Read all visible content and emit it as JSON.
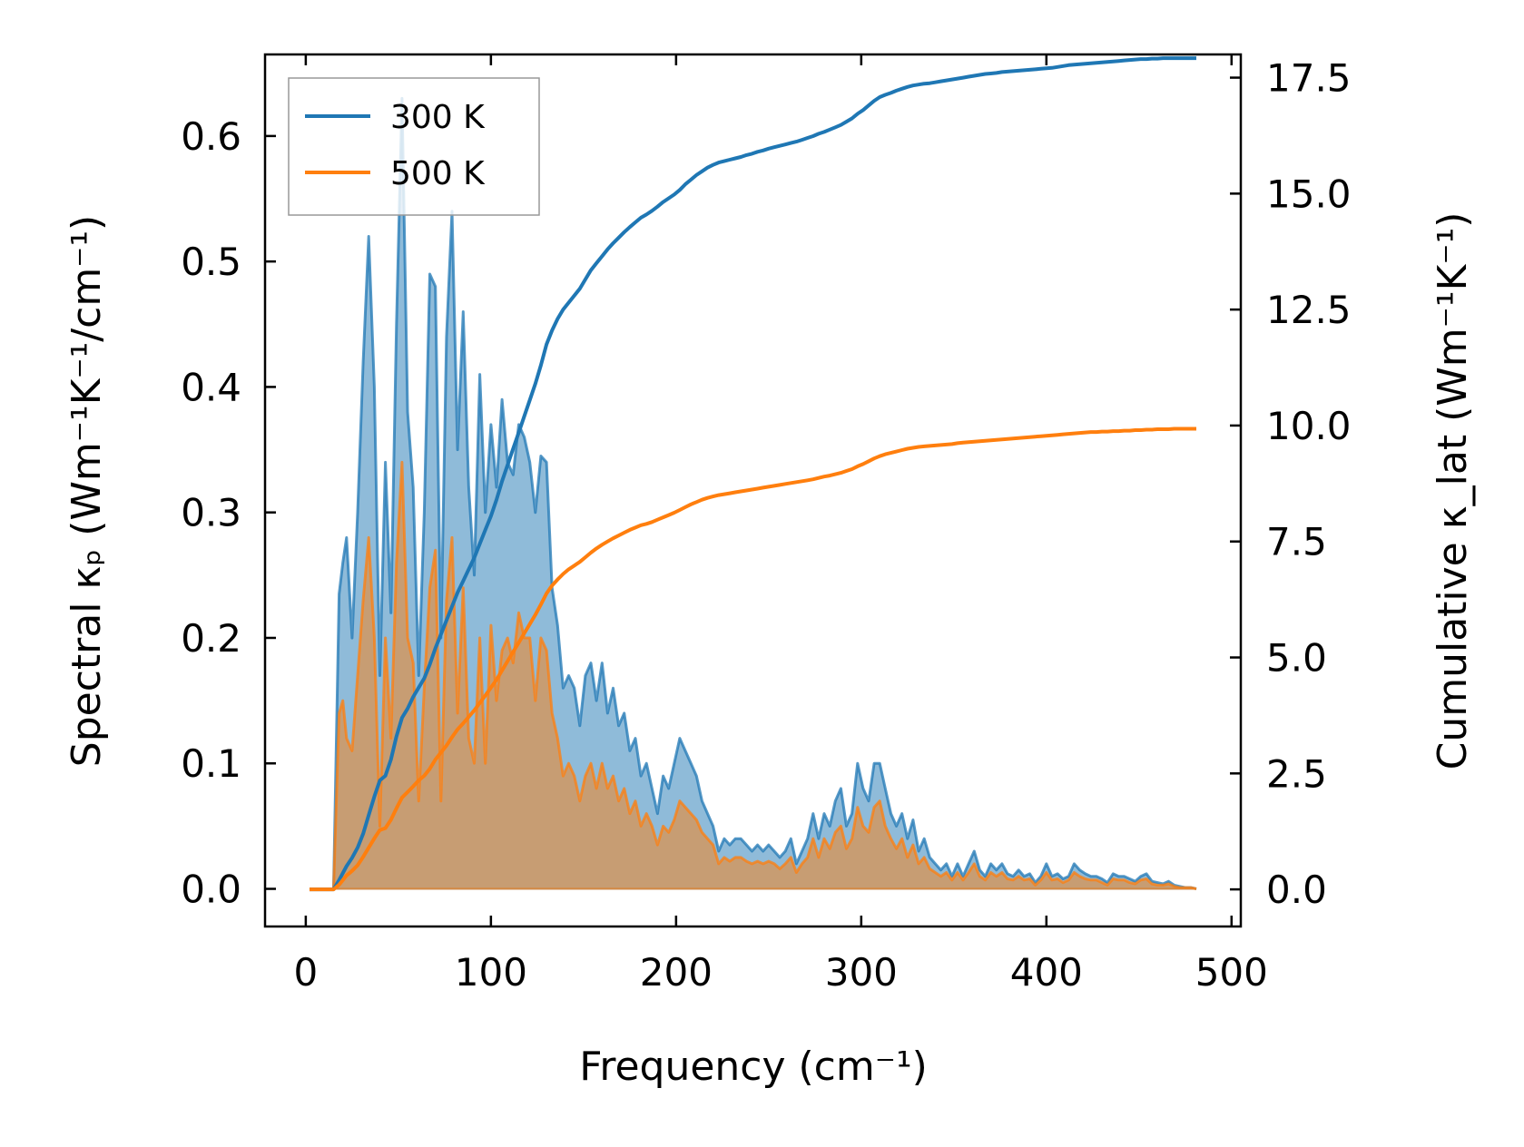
{
  "chart_data": {
    "type": "area",
    "xlabel": "Frequency (cm⁻¹)",
    "ylabel_left": "Spectral κₚ (Wm⁻¹K⁻¹/cm⁻¹)",
    "ylabel_right": "Cumulative κ_lat (Wm⁻¹K⁻¹)",
    "xlim": [
      -22,
      505
    ],
    "ylim_left": [
      -0.03,
      0.665
    ],
    "ylim_right": [
      -0.8,
      18.0
    ],
    "xticks": [
      0,
      100,
      200,
      300,
      400,
      500
    ],
    "xtick_labels": [
      "0",
      "100",
      "200",
      "300",
      "400",
      "500"
    ],
    "yticks_left": [
      0.0,
      0.1,
      0.2,
      0.3,
      0.4,
      0.5,
      0.6
    ],
    "ytick_labels_left": [
      "0.0",
      "0.1",
      "0.2",
      "0.3",
      "0.4",
      "0.5",
      "0.6"
    ],
    "yticks_right": [
      0.0,
      2.5,
      5.0,
      7.5,
      10.0,
      12.5,
      15.0,
      17.5
    ],
    "ytick_labels_right": [
      "0.0",
      "2.5",
      "5.0",
      "7.5",
      "10.0",
      "12.5",
      "15.0",
      "17.5"
    ],
    "legend": {
      "position": "top-left",
      "entries": [
        "300 K",
        "500 K"
      ]
    },
    "colors": {
      "s300": "#1f77b4",
      "s500": "#ff7f0e"
    },
    "x": [
      2,
      15,
      18,
      20,
      22,
      25,
      28,
      31,
      34,
      37,
      40,
      43,
      46,
      49,
      52,
      55,
      58,
      61,
      64,
      67,
      70,
      73,
      76,
      79,
      82,
      85,
      88,
      91,
      94,
      97,
      100,
      103,
      106,
      109,
      112,
      115,
      118,
      121,
      124,
      127,
      130,
      133,
      136,
      139,
      142,
      145,
      148,
      151,
      154,
      157,
      160,
      163,
      166,
      169,
      172,
      175,
      178,
      181,
      184,
      187,
      190,
      193,
      196,
      199,
      202,
      205,
      208,
      211,
      214,
      217,
      220,
      223,
      226,
      229,
      232,
      235,
      238,
      241,
      244,
      247,
      250,
      253,
      256,
      259,
      262,
      265,
      268,
      271,
      274,
      277,
      280,
      283,
      286,
      289,
      292,
      295,
      298,
      301,
      304,
      307,
      310,
      313,
      316,
      319,
      322,
      325,
      328,
      331,
      334,
      337,
      340,
      343,
      346,
      349,
      352,
      355,
      358,
      361,
      364,
      367,
      370,
      373,
      376,
      379,
      382,
      385,
      388,
      391,
      394,
      397,
      400,
      403,
      406,
      409,
      412,
      415,
      418,
      421,
      424,
      427,
      430,
      433,
      436,
      439,
      442,
      445,
      448,
      451,
      454,
      457,
      460,
      463,
      466,
      469,
      472,
      475,
      478,
      481
    ],
    "series": [
      {
        "name": "300 K",
        "spectral": [
          0,
          0,
          0.235,
          0.26,
          0.28,
          0.2,
          0.3,
          0.42,
          0.52,
          0.4,
          0.17,
          0.34,
          0.22,
          0.45,
          0.63,
          0.38,
          0.32,
          0.17,
          0.3,
          0.49,
          0.48,
          0.2,
          0.44,
          0.54,
          0.35,
          0.46,
          0.32,
          0.25,
          0.41,
          0.3,
          0.37,
          0.32,
          0.39,
          0.34,
          0.33,
          0.37,
          0.36,
          0.34,
          0.3,
          0.345,
          0.34,
          0.24,
          0.21,
          0.16,
          0.17,
          0.16,
          0.13,
          0.17,
          0.18,
          0.15,
          0.18,
          0.14,
          0.16,
          0.13,
          0.14,
          0.11,
          0.12,
          0.09,
          0.1,
          0.08,
          0.06,
          0.09,
          0.08,
          0.1,
          0.12,
          0.11,
          0.1,
          0.09,
          0.07,
          0.06,
          0.05,
          0.03,
          0.04,
          0.035,
          0.04,
          0.04,
          0.035,
          0.03,
          0.035,
          0.03,
          0.035,
          0.03,
          0.025,
          0.03,
          0.04,
          0.02,
          0.03,
          0.04,
          0.06,
          0.04,
          0.06,
          0.05,
          0.07,
          0.08,
          0.05,
          0.06,
          0.1,
          0.08,
          0.07,
          0.1,
          0.1,
          0.08,
          0.06,
          0.05,
          0.06,
          0.04,
          0.055,
          0.03,
          0.04,
          0.025,
          0.02,
          0.015,
          0.02,
          0.01,
          0.02,
          0.01,
          0.02,
          0.03,
          0.015,
          0.01,
          0.02,
          0.015,
          0.02,
          0.012,
          0.01,
          0.015,
          0.01,
          0.012,
          0.005,
          0.01,
          0.02,
          0.01,
          0.012,
          0.008,
          0.01,
          0.02,
          0.015,
          0.012,
          0.01,
          0.01,
          0.008,
          0.005,
          0.012,
          0.01,
          0.01,
          0.008,
          0.006,
          0.01,
          0.012,
          0.006,
          0.005,
          0.004,
          0.006,
          0.003,
          0.002,
          0.001,
          0.001,
          0
        ],
        "cumulative": [
          0,
          0,
          0.2,
          0.35,
          0.5,
          0.68,
          0.9,
          1.2,
          1.6,
          2.0,
          2.35,
          2.45,
          2.8,
          3.3,
          3.7,
          3.9,
          4.15,
          4.35,
          4.55,
          4.85,
          5.2,
          5.5,
          5.8,
          6.1,
          6.4,
          6.65,
          6.9,
          7.15,
          7.45,
          7.75,
          8.05,
          8.4,
          8.8,
          9.15,
          9.5,
          9.85,
          10.2,
          10.55,
          10.9,
          11.3,
          11.75,
          12.05,
          12.3,
          12.5,
          12.65,
          12.8,
          12.95,
          13.15,
          13.35,
          13.5,
          13.65,
          13.8,
          13.93,
          14.05,
          14.17,
          14.28,
          14.38,
          14.48,
          14.55,
          14.63,
          14.72,
          14.82,
          14.9,
          14.98,
          15.08,
          15.2,
          15.3,
          15.4,
          15.48,
          15.56,
          15.62,
          15.67,
          15.7,
          15.73,
          15.76,
          15.79,
          15.83,
          15.86,
          15.9,
          15.93,
          15.97,
          16.0,
          16.03,
          16.06,
          16.09,
          16.12,
          16.16,
          16.2,
          16.24,
          16.29,
          16.33,
          16.38,
          16.43,
          16.48,
          16.55,
          16.62,
          16.72,
          16.8,
          16.9,
          17.0,
          17.08,
          17.13,
          17.17,
          17.22,
          17.26,
          17.3,
          17.33,
          17.35,
          17.37,
          17.38,
          17.4,
          17.42,
          17.44,
          17.46,
          17.48,
          17.5,
          17.52,
          17.54,
          17.56,
          17.58,
          17.59,
          17.6,
          17.62,
          17.63,
          17.64,
          17.65,
          17.66,
          17.67,
          17.68,
          17.69,
          17.7,
          17.71,
          17.73,
          17.75,
          17.77,
          17.78,
          17.79,
          17.8,
          17.81,
          17.82,
          17.83,
          17.84,
          17.85,
          17.86,
          17.87,
          17.88,
          17.89,
          17.9,
          17.9,
          17.91,
          17.91,
          17.92,
          17.92,
          17.92,
          17.92,
          17.92,
          17.92,
          17.92
        ]
      },
      {
        "name": "500 K",
        "spectral": [
          0,
          0,
          0.14,
          0.15,
          0.12,
          0.11,
          0.17,
          0.23,
          0.28,
          0.2,
          0.05,
          0.2,
          0.12,
          0.26,
          0.34,
          0.2,
          0.18,
          0.07,
          0.16,
          0.24,
          0.27,
          0.07,
          0.23,
          0.28,
          0.14,
          0.24,
          0.12,
          0.1,
          0.2,
          0.1,
          0.21,
          0.15,
          0.19,
          0.2,
          0.18,
          0.22,
          0.2,
          0.2,
          0.15,
          0.2,
          0.19,
          0.14,
          0.12,
          0.09,
          0.1,
          0.09,
          0.07,
          0.09,
          0.1,
          0.08,
          0.1,
          0.08,
          0.09,
          0.07,
          0.08,
          0.06,
          0.07,
          0.05,
          0.06,
          0.05,
          0.035,
          0.05,
          0.045,
          0.055,
          0.07,
          0.065,
          0.06,
          0.055,
          0.045,
          0.04,
          0.035,
          0.02,
          0.025,
          0.022,
          0.025,
          0.025,
          0.022,
          0.02,
          0.022,
          0.02,
          0.022,
          0.02,
          0.016,
          0.02,
          0.025,
          0.013,
          0.02,
          0.025,
          0.04,
          0.025,
          0.04,
          0.032,
          0.045,
          0.05,
          0.032,
          0.04,
          0.065,
          0.05,
          0.045,
          0.065,
          0.07,
          0.05,
          0.04,
          0.032,
          0.04,
          0.025,
          0.035,
          0.02,
          0.025,
          0.016,
          0.013,
          0.01,
          0.013,
          0.007,
          0.013,
          0.007,
          0.013,
          0.02,
          0.01,
          0.007,
          0.013,
          0.01,
          0.013,
          0.008,
          0.007,
          0.01,
          0.007,
          0.008,
          0.003,
          0.007,
          0.013,
          0.007,
          0.008,
          0.005,
          0.007,
          0.013,
          0.01,
          0.008,
          0.007,
          0.007,
          0.005,
          0.003,
          0.008,
          0.007,
          0.007,
          0.005,
          0.004,
          0.007,
          0.008,
          0.004,
          0.003,
          0.003,
          0.004,
          0.002,
          0.001,
          0.001,
          0.001,
          0
        ],
        "cumulative": [
          0,
          0,
          0.1,
          0.2,
          0.3,
          0.4,
          0.52,
          0.7,
          0.9,
          1.1,
          1.28,
          1.32,
          1.5,
          1.75,
          1.98,
          2.1,
          2.22,
          2.35,
          2.45,
          2.6,
          2.8,
          2.95,
          3.1,
          3.28,
          3.45,
          3.58,
          3.72,
          3.86,
          4.02,
          4.18,
          4.35,
          4.52,
          4.72,
          4.92,
          5.12,
          5.32,
          5.52,
          5.72,
          5.92,
          6.14,
          6.38,
          6.55,
          6.68,
          6.8,
          6.9,
          6.98,
          7.06,
          7.16,
          7.26,
          7.35,
          7.43,
          7.5,
          7.57,
          7.63,
          7.69,
          7.75,
          7.8,
          7.85,
          7.88,
          7.92,
          7.97,
          8.02,
          8.07,
          8.12,
          8.18,
          8.24,
          8.3,
          8.35,
          8.4,
          8.44,
          8.47,
          8.5,
          8.52,
          8.54,
          8.56,
          8.58,
          8.6,
          8.62,
          8.64,
          8.66,
          8.68,
          8.7,
          8.72,
          8.74,
          8.76,
          8.78,
          8.8,
          8.82,
          8.84,
          8.87,
          8.9,
          8.92,
          8.95,
          8.98,
          9.02,
          9.06,
          9.12,
          9.17,
          9.23,
          9.29,
          9.34,
          9.38,
          9.41,
          9.44,
          9.47,
          9.5,
          9.52,
          9.54,
          9.55,
          9.56,
          9.57,
          9.58,
          9.59,
          9.6,
          9.62,
          9.63,
          9.64,
          9.65,
          9.66,
          9.67,
          9.68,
          9.69,
          9.7,
          9.71,
          9.72,
          9.73,
          9.74,
          9.75,
          9.76,
          9.77,
          9.78,
          9.79,
          9.8,
          9.81,
          9.82,
          9.83,
          9.84,
          9.85,
          9.86,
          9.86,
          9.87,
          9.87,
          9.88,
          9.88,
          9.89,
          9.89,
          9.9,
          9.9,
          9.91,
          9.91,
          9.92,
          9.92,
          9.92,
          9.93,
          9.93,
          9.93,
          9.93,
          9.93
        ]
      }
    ]
  }
}
